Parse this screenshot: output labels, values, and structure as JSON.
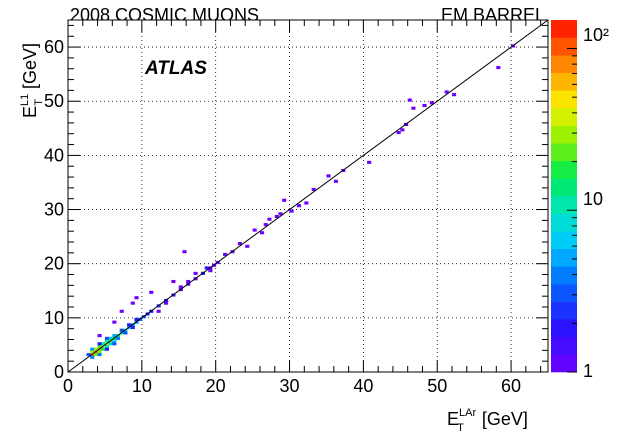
{
  "chart_data": {
    "type": "heatmap",
    "title_left": "2008 COSMIC MUONS",
    "title_right": "EM BARREL",
    "watermark": "ATLAS",
    "xlabel": {
      "symbol": "E",
      "sub": "T",
      "sup": "LAr",
      "unit": "[GeV]"
    },
    "ylabel": {
      "symbol": "E",
      "sub": "T",
      "sup": "L1",
      "unit": "[GeV]"
    },
    "xlim": [
      0,
      65
    ],
    "ylim": [
      0,
      65
    ],
    "x_ticks": [
      "0",
      "10",
      "20",
      "30",
      "40",
      "50",
      "60"
    ],
    "y_ticks": [
      "0",
      "10",
      "20",
      "30",
      "40",
      "50",
      "60"
    ],
    "z_scale": "log",
    "zlim": [
      1,
      150
    ],
    "z_tick_labels": [
      "1",
      "10",
      "10²"
    ],
    "reference_line": {
      "from": [
        0,
        0
      ],
      "to": [
        65,
        65
      ]
    },
    "bin_size": 0.5,
    "points": [
      [
        3,
        3,
        90
      ],
      [
        3.5,
        3.5,
        100
      ],
      [
        4,
        4,
        80
      ],
      [
        4.5,
        4.5,
        50
      ],
      [
        5,
        5,
        40
      ],
      [
        5.5,
        5.5,
        28
      ],
      [
        6,
        6,
        20
      ],
      [
        6.5,
        6.5,
        14
      ],
      [
        7,
        7,
        10
      ],
      [
        7.5,
        7.5,
        8
      ],
      [
        8,
        8,
        6
      ],
      [
        8.5,
        8.5,
        5
      ],
      [
        9,
        9,
        4
      ],
      [
        9.5,
        9.5,
        3
      ],
      [
        10,
        10,
        3
      ],
      [
        10.5,
        10.5,
        2
      ],
      [
        11,
        11,
        2
      ],
      [
        12,
        12,
        2
      ],
      [
        13,
        13,
        2
      ],
      [
        14,
        14,
        2
      ],
      [
        15,
        15,
        1
      ],
      [
        16,
        16,
        1
      ],
      [
        17,
        17,
        1
      ],
      [
        18,
        18,
        2
      ],
      [
        19,
        19,
        1
      ],
      [
        3,
        3.5,
        30
      ],
      [
        3.5,
        3,
        25
      ],
      [
        3.5,
        4,
        30
      ],
      [
        4,
        3.5,
        25
      ],
      [
        4,
        4.5,
        20
      ],
      [
        4.5,
        4,
        15
      ],
      [
        4.5,
        5,
        12
      ],
      [
        5,
        4.5,
        10
      ],
      [
        5,
        5.5,
        10
      ],
      [
        5.5,
        5,
        8
      ],
      [
        5.5,
        6,
        8
      ],
      [
        6,
        5.5,
        6
      ],
      [
        6,
        6.5,
        5
      ],
      [
        6.5,
        6,
        4
      ],
      [
        7,
        7.5,
        3
      ],
      [
        7.5,
        7,
        3
      ],
      [
        8,
        8.5,
        2
      ],
      [
        8.5,
        8,
        2
      ],
      [
        9,
        9.5,
        2
      ],
      [
        3,
        4,
        5
      ],
      [
        4,
        3,
        4
      ],
      [
        5,
        6,
        3
      ],
      [
        6,
        5,
        3
      ],
      [
        3,
        2.5,
        4
      ],
      [
        2.5,
        3,
        3
      ],
      [
        4,
        5,
        2
      ],
      [
        5,
        4,
        2
      ],
      [
        4,
        6.5,
        1
      ],
      [
        6,
        9,
        1
      ],
      [
        7,
        11,
        1
      ],
      [
        8.5,
        12.5,
        1
      ],
      [
        9,
        13.5,
        1
      ],
      [
        11,
        14.5,
        1
      ],
      [
        14,
        16.5,
        1
      ],
      [
        12,
        11,
        1
      ],
      [
        13,
        12.5,
        1
      ],
      [
        15,
        15.5,
        1
      ],
      [
        16,
        16.5,
        1
      ],
      [
        17,
        18,
        1
      ],
      [
        18.5,
        19,
        2
      ],
      [
        19,
        18.5,
        1
      ],
      [
        19.5,
        19.5,
        1
      ],
      [
        15.5,
        22,
        1
      ],
      [
        20,
        20,
        1
      ],
      [
        21,
        21.5,
        1
      ],
      [
        22,
        22,
        1
      ],
      [
        23,
        23.5,
        1
      ],
      [
        24,
        23,
        1
      ],
      [
        25,
        26,
        1
      ],
      [
        26,
        25.5,
        1
      ],
      [
        26.5,
        27,
        1
      ],
      [
        27,
        28,
        1
      ],
      [
        28,
        28.5,
        1
      ],
      [
        28.5,
        29,
        1
      ],
      [
        29,
        31.5,
        1
      ],
      [
        30,
        29.5,
        1
      ],
      [
        31,
        30.5,
        1
      ],
      [
        32,
        31,
        1
      ],
      [
        33,
        33.5,
        1
      ],
      [
        35,
        36,
        1
      ],
      [
        36,
        35,
        1
      ],
      [
        37,
        37,
        1
      ],
      [
        40.5,
        38.5,
        1
      ],
      [
        44.5,
        44,
        1
      ],
      [
        45,
        44.5,
        1
      ],
      [
        45.5,
        45.5,
        1
      ],
      [
        46,
        50,
        1
      ],
      [
        46.5,
        48.5,
        1
      ],
      [
        48,
        49,
        1
      ],
      [
        49,
        49.5,
        1
      ],
      [
        51,
        51.5,
        1
      ],
      [
        52,
        51,
        1
      ],
      [
        58,
        56,
        1
      ],
      [
        60,
        60,
        1
      ]
    ]
  }
}
